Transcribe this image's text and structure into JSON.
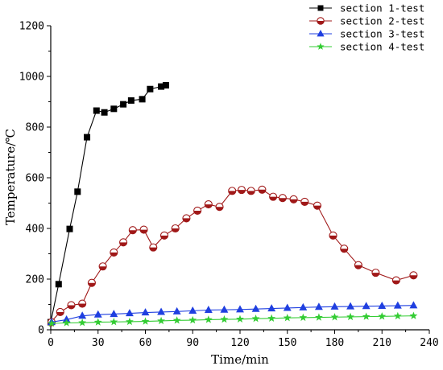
{
  "chart_data": {
    "type": "line",
    "xlabel": "Time/min",
    "ylabel": "Temperature/℃",
    "xlim": [
      0,
      240
    ],
    "ylim": [
      0,
      1200
    ],
    "xticks": [
      0,
      30,
      60,
      90,
      120,
      150,
      180,
      210,
      240
    ],
    "yticks": [
      0,
      200,
      400,
      600,
      800,
      1000,
      1200
    ],
    "legend_position": "top-right",
    "grid": false,
    "series": [
      {
        "name": "section 1-test",
        "color": "#000000",
        "marker": "square",
        "x": [
          0,
          5,
          12,
          17,
          23,
          29,
          34,
          40,
          46,
          51,
          58,
          63,
          70,
          73
        ],
        "y": [
          30,
          180,
          398,
          545,
          760,
          865,
          858,
          872,
          890,
          905,
          910,
          950,
          960,
          965
        ]
      },
      {
        "name": "section 2-test",
        "color": "#a01818",
        "marker": "half-circle",
        "x": [
          0,
          6,
          13,
          20,
          26,
          33,
          40,
          46,
          52,
          59,
          65,
          72,
          79,
          86,
          93,
          100,
          107,
          115,
          121,
          127,
          134,
          141,
          147,
          154,
          161,
          169,
          179,
          186,
          195,
          206,
          219,
          230
        ],
        "y": [
          30,
          70,
          97,
          103,
          185,
          250,
          305,
          345,
          393,
          395,
          325,
          372,
          400,
          440,
          470,
          495,
          485,
          548,
          552,
          548,
          553,
          525,
          520,
          515,
          505,
          490,
          372,
          320,
          255,
          225,
          195,
          215
        ]
      },
      {
        "name": "section 3-test",
        "color": "#1f3fe0",
        "marker": "triangle",
        "x": [
          0,
          10,
          20,
          30,
          40,
          50,
          60,
          70,
          80,
          90,
          100,
          110,
          120,
          130,
          140,
          150,
          160,
          170,
          180,
          190,
          200,
          210,
          220,
          230
        ],
        "y": [
          30,
          40,
          55,
          60,
          62,
          65,
          68,
          70,
          72,
          75,
          78,
          79,
          80,
          82,
          84,
          86,
          88,
          90,
          91,
          92,
          93,
          94,
          95,
          96
        ]
      },
      {
        "name": "section 4-test",
        "color": "#33cc33",
        "marker": "star",
        "x": [
          0,
          10,
          20,
          30,
          40,
          50,
          60,
          70,
          80,
          90,
          100,
          110,
          120,
          130,
          140,
          150,
          160,
          170,
          180,
          190,
          200,
          210,
          220,
          230
        ],
        "y": [
          25,
          27,
          28,
          30,
          31,
          32,
          33,
          35,
          37,
          38,
          40,
          41,
          42,
          44,
          45,
          47,
          48,
          49,
          50,
          51,
          52,
          53,
          54,
          55
        ]
      }
    ]
  }
}
